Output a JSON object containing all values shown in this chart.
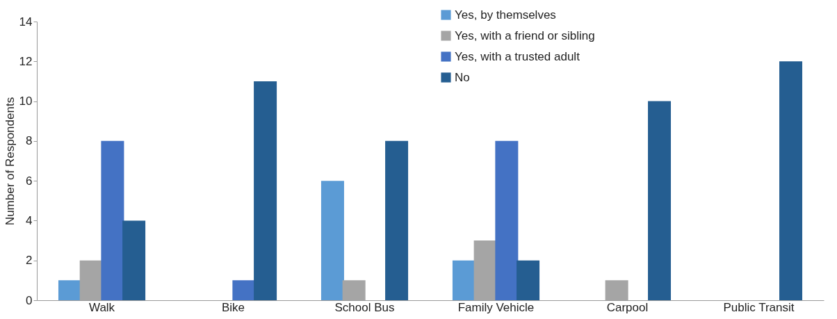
{
  "chart_data": {
    "type": "bar",
    "ylabel": "Number of Respondents",
    "categories": [
      "Walk",
      "Bike",
      "School Bus",
      "Family Vehicle",
      "Carpool",
      "Public Transit"
    ],
    "series": [
      {
        "name": "Yes, by themselves",
        "color": "#5b9bd5",
        "values": [
          1,
          0,
          6,
          2,
          0,
          0
        ]
      },
      {
        "name": "Yes, with a friend or sibling",
        "color": "#a5a5a5",
        "values": [
          2,
          0,
          1,
          3,
          1,
          0
        ]
      },
      {
        "name": "Yes, with a trusted adult",
        "color": "#4472c4",
        "values": [
          8,
          1,
          0,
          8,
          0,
          0
        ]
      },
      {
        "name": "No",
        "color": "#255e91",
        "values": [
          4,
          11,
          8,
          2,
          10,
          12
        ]
      }
    ],
    "ylim": [
      0,
      14
    ],
    "yticks": [
      0,
      2,
      4,
      6,
      8,
      10,
      12,
      14
    ],
    "grid": false,
    "legend": "top"
  }
}
